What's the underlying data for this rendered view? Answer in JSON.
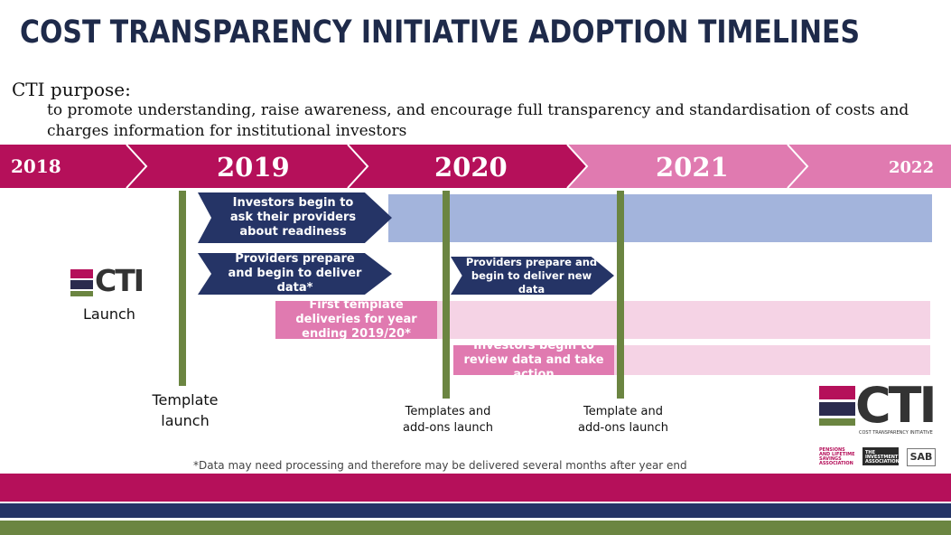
{
  "title": "COST TRANSPARENCY INITIATIVE ADOPTION TIMELINES",
  "purpose": {
    "label": "CTI purpose:",
    "text": "to promote understanding, raise awareness, and encourage full transparency and standardisation of costs and charges information for institutional investors"
  },
  "timeline": {
    "years": [
      "2018",
      "2019",
      "2020",
      "2021",
      "2022"
    ]
  },
  "bars": {
    "investors_ask": "Investors begin to ask their providers about readiness",
    "providers_prepare": "Providers prepare and begin to deliver data*",
    "providers_prepare_new": "Providers prepare and begin to deliver new data",
    "first_template": "First template deliveries for year ending 2019/20*",
    "investors_review": "Investors begin to review data and take action"
  },
  "milestones": {
    "launch": "Launch",
    "template_launch": "Template launch",
    "templates_addons": "Templates and add-ons launch",
    "template_addons": "Template and add-ons launch"
  },
  "logos": {
    "cti_text": "CTI",
    "cti_subtitle": "COST TRANSPARENCY INITIATIVE",
    "plsa": "PENSIONS AND LIFETIME SAVINGS ASSOCIATION",
    "ia": "THE INVESTMENT ASSOCIATION",
    "sab": "SAB"
  },
  "footnote": "*Data may need processing  and therefore may be delivered several months after year end",
  "colors": {
    "navy": "#253466",
    "crimson": "#b5105a",
    "pink": "#e07ab0",
    "light_blue": "#a3b4dc",
    "light_pink": "#f5d3e5",
    "green": "#6b8541"
  }
}
